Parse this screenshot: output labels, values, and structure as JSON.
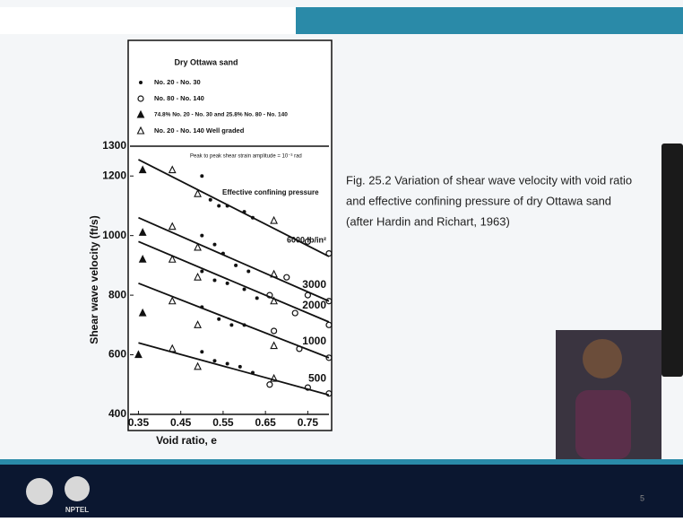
{
  "slide": {
    "caption": [
      "Fig. 25.2 Variation of shear wave velocity with void ratio",
      "and effective confining pressure of dry Ottawa sand",
      "(after Hardin and Richart, 1963)"
    ],
    "logo_text": "NPTEL",
    "page_number": "5"
  },
  "chart_data": {
    "type": "scatter",
    "legend_title": "Dry Ottawa sand",
    "x_label": "Void ratio, e",
    "y_label": "Shear wave velocity (ft/s)",
    "annotations": [
      "Peak to peak shear strain amplitude = 10⁻³ rad",
      "Effective confining pressure"
    ],
    "xlim": [
      0.33,
      0.8
    ],
    "xticks": [
      0.35,
      0.45,
      0.55,
      0.65,
      0.75
    ],
    "ylim": [
      400,
      1300
    ],
    "yticks": [
      400,
      600,
      800,
      1000,
      1200,
      1300
    ],
    "series": [
      {
        "name": "No. 20 - No. 30",
        "marker": "dot",
        "color": "#111111",
        "x": [
          0.5,
          0.52,
          0.54,
          0.56,
          0.6,
          0.62,
          0.5,
          0.53,
          0.55,
          0.58,
          0.61,
          0.5,
          0.53,
          0.56,
          0.6,
          0.63,
          0.5,
          0.54,
          0.57,
          0.6,
          0.5,
          0.53,
          0.56,
          0.59,
          0.62
        ],
        "values": [
          1200,
          1120,
          1100,
          1100,
          1080,
          1060,
          1000,
          970,
          940,
          900,
          880,
          880,
          850,
          840,
          820,
          790,
          760,
          720,
          700,
          700,
          610,
          580,
          570,
          560,
          540
        ]
      },
      {
        "name": "No. 80 - No. 140",
        "marker": "circle",
        "color": "#111111",
        "x": [
          0.75,
          0.8,
          0.7,
          0.75,
          0.8,
          0.66,
          0.72,
          0.8,
          0.67,
          0.73,
          0.8,
          0.66,
          0.75,
          0.8
        ],
        "values": [
          980,
          940,
          860,
          800,
          780,
          800,
          740,
          700,
          680,
          620,
          590,
          500,
          490,
          470
        ]
      },
      {
        "name": "74.8% No. 20 - No. 30 and 25.8% No. 80 - No. 140",
        "marker": "triangle",
        "color": "#111111",
        "x": [
          0.36,
          0.36,
          0.36,
          0.36,
          0.35
        ],
        "values": [
          1220,
          1010,
          920,
          740,
          600
        ]
      },
      {
        "name": "No. 20 - No. 140  Well graded",
        "marker": "open-triangle",
        "color": "#111111",
        "x": [
          0.43,
          0.43,
          0.43,
          0.43,
          0.43,
          0.49,
          0.49,
          0.49,
          0.49,
          0.49,
          0.67,
          0.67,
          0.67,
          0.67,
          0.67
        ],
        "values": [
          1220,
          1030,
          920,
          780,
          620,
          1140,
          960,
          860,
          700,
          560,
          1050,
          870,
          780,
          630,
          520
        ]
      }
    ],
    "lines": [
      {
        "name": "6000 lb/in²",
        "x": [
          0.35,
          0.8
        ],
        "values": [
          1255,
          930
        ]
      },
      {
        "name": "3000",
        "x": [
          0.35,
          0.8
        ],
        "values": [
          1060,
          780
        ]
      },
      {
        "name": "2000",
        "x": [
          0.35,
          0.8
        ],
        "values": [
          980,
          710
        ]
      },
      {
        "name": "1000",
        "x": [
          0.35,
          0.8
        ],
        "values": [
          840,
          590
        ]
      },
      {
        "name": "500",
        "x": [
          0.35,
          0.8
        ],
        "values": [
          640,
          465
        ]
      }
    ]
  }
}
